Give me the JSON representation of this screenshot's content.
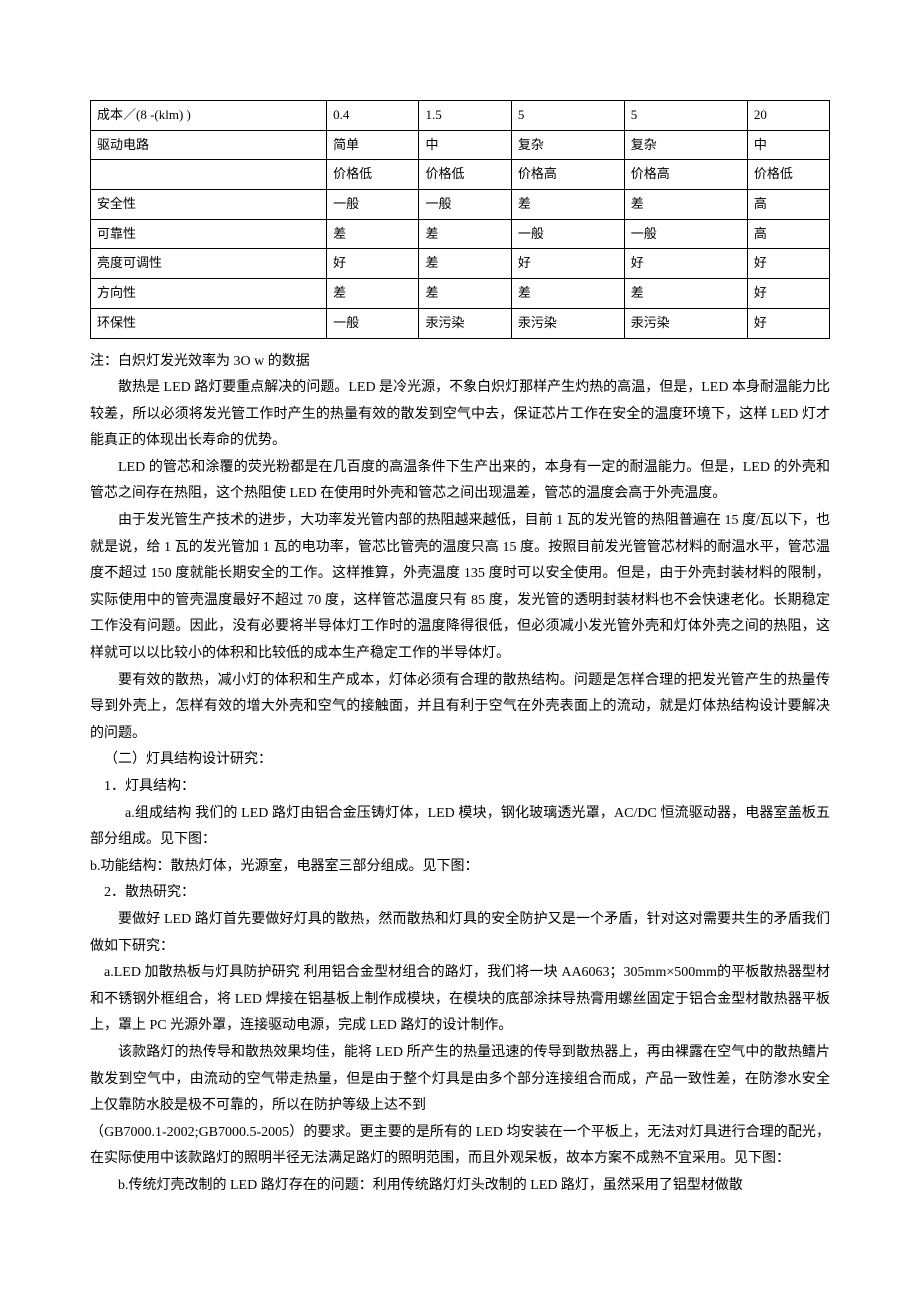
{
  "table": {
    "rows": [
      [
        "成本／(8 -(klm) )",
        "0.4",
        "1.5",
        "5",
        "5",
        "20"
      ],
      [
        "驱动电路",
        "简单",
        "中",
        "复杂",
        "复杂",
        "中"
      ],
      [
        "",
        "价格低",
        "价格低",
        "价格高",
        "价格高",
        "价格低"
      ],
      [
        "安全性",
        "一般",
        "一般",
        "差",
        "差",
        "高"
      ],
      [
        "可靠性",
        "差",
        "差",
        "一般",
        "一般",
        "高"
      ],
      [
        "亮度可调性",
        "好",
        "差",
        "好",
        "好",
        "好"
      ],
      [
        "方向性",
        "差",
        "差",
        "差",
        "差",
        "好"
      ],
      [
        "环保性",
        "一般",
        "汞污染",
        "汞污染",
        "汞污染",
        "好"
      ]
    ]
  },
  "paragraphs": {
    "note": "注：白炽灯发光效率为 3O w 的数据",
    "p1": "散热是 LED 路灯要重点解决的问题。LED 是冷光源，不象白炽灯那样产生灼热的高温，但是，LED 本身耐温能力比较差，所以必须将发光管工作时产生的热量有效的散发到空气中去，保证芯片工作在安全的温度环境下，这样 LED 灯才能真正的体现出长寿命的优势。",
    "p2": "LED 的管芯和涂覆的荧光粉都是在几百度的高温条件下生产出来的，本身有一定的耐温能力。但是，LED 的外壳和管芯之间存在热阻，这个热阻使 LED 在使用时外壳和管芯之间出现温差，管芯的温度会高于外壳温度。",
    "p3": "由于发光管生产技术的进步，大功率发光管内部的热阻越来越低，目前 1 瓦的发光管的热阻普遍在 15 度/瓦以下，也就是说，给 1 瓦的发光管加 1 瓦的电功率，管芯比管壳的温度只高 15 度。按照目前发光管管芯材料的耐温水平，管芯温度不超过 150 度就能长期安全的工作。这样推算，外壳温度 135 度时可以安全使用。但是，由于外壳封装材料的限制，实际使用中的管壳温度最好不超过 70 度，这样管芯温度只有 85 度，发光管的透明封装材料也不会快速老化。长期稳定工作没有问题。因此，没有必要将半导体灯工作时的温度降得很低，但必须减小发光管外壳和灯体外壳之间的热阻，这样就可以以比较小的体积和比较低的成本生产稳定工作的半导体灯。",
    "p4": "要有效的散热，减小灯的体积和生产成本，灯体必须有合理的散热结构。问题是怎样合理的把发光管产生的热量传导到外壳上，怎样有效的增大外壳和空气的接触面，并且有利于空气在外壳表面上的流动，就是灯体热结构设计要解决的问题。",
    "h1": "（二）灯具结构设计研究：",
    "h1_1": "1．灯具结构：",
    "p5": "a.组成结构 我们的 LED 路灯由铝合金压铸灯体，LED 模块，钢化玻璃透光罩，AC/DC 恒流驱动器，电器室盖板五部分组成。见下图：",
    "p6": "b.功能结构：散热灯体，光源室，电器室三部分组成。见下图：",
    "h1_2": "2．散热研究：",
    "p7": "要做好 LED 路灯首先要做好灯具的散热，然而散热和灯具的安全防护又是一个矛盾，针对这对需要共生的矛盾我们做如下研究：",
    "p8": "a.LED 加散热板与灯具防护研究 利用铝合金型材组合的路灯，我们将一块 AA6063；305mm×500mm的平板散热器型材和不锈钢外框组合，将 LED 焊接在铝基板上制作成模块，在模块的底部涂抹导热膏用螺丝固定于铝合金型材散热器平板上，罩上 PC 光源外罩，连接驱动电源，完成 LED 路灯的设计制作。",
    "p9": "该款路灯的热传导和散热效果均佳，能将 LED 所产生的热量迅速的传导到散热器上，再由裸露在空气中的散热鳍片散发到空气中，由流动的空气带走热量，但是由于整个灯具是由多个部分连接组合而成，产品一致性差，在防渗水安全上仅靠防水胶是极不可靠的，所以在防护等级上达不到",
    "p10": "（GB7000.1-2002;GB7000.5-2005）的要求。更主要的是所有的 LED 均安装在一个平板上，无法对灯具进行合理的配光，在实际使用中该款路灯的照明半径无法满足路灯的照明范围，而且外观呆板，故本方案不成熟不宜采用。见下图：",
    "p11": "b.传统灯壳改制的 LED 路灯存在的问题：利用传统路灯灯头改制的 LED 路灯，虽然采用了铝型材做散"
  }
}
